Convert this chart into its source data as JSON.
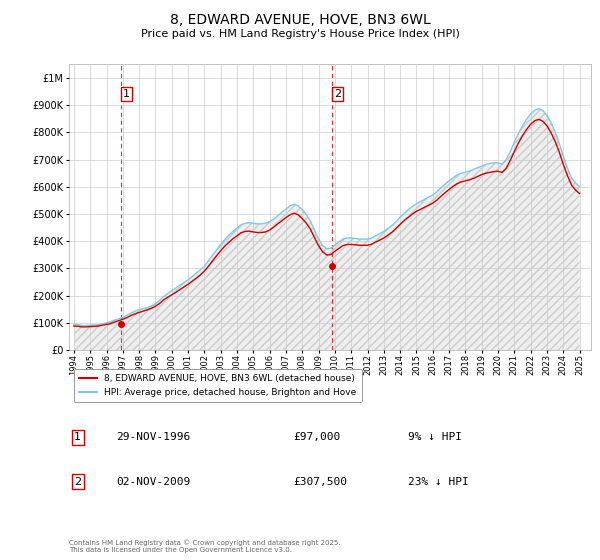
{
  "title": "8, EDWARD AVENUE, HOVE, BN3 6WL",
  "subtitle": "Price paid vs. HM Land Registry's House Price Index (HPI)",
  "ytick_vals": [
    0,
    100000,
    200000,
    300000,
    400000,
    500000,
    600000,
    700000,
    800000,
    900000,
    1000000
  ],
  "ylim": [
    0,
    1050000
  ],
  "xlim_start": 1993.7,
  "xlim_end": 2025.7,
  "hpi_color": "#7ec8e3",
  "price_color": "#cc0000",
  "background_color": "#ffffff",
  "grid_color": "#cccccc",
  "sale1_x": 1996.91,
  "sale1_y": 97000,
  "sale2_x": 2009.84,
  "sale2_y": 307500,
  "legend_label_price": "8, EDWARD AVENUE, HOVE, BN3 6WL (detached house)",
  "legend_label_hpi": "HPI: Average price, detached house, Brighton and Hove",
  "footnote": "Contains HM Land Registry data © Crown copyright and database right 2025.\nThis data is licensed under the Open Government Licence v3.0.",
  "hpi_data_x": [
    1994.0,
    1994.25,
    1994.5,
    1994.75,
    1995.0,
    1995.25,
    1995.5,
    1995.75,
    1996.0,
    1996.25,
    1996.5,
    1996.75,
    1997.0,
    1997.25,
    1997.5,
    1997.75,
    1998.0,
    1998.25,
    1998.5,
    1998.75,
    1999.0,
    1999.25,
    1999.5,
    1999.75,
    2000.0,
    2000.25,
    2000.5,
    2000.75,
    2001.0,
    2001.25,
    2001.5,
    2001.75,
    2002.0,
    2002.25,
    2002.5,
    2002.75,
    2003.0,
    2003.25,
    2003.5,
    2003.75,
    2004.0,
    2004.25,
    2004.5,
    2004.75,
    2005.0,
    2005.25,
    2005.5,
    2005.75,
    2006.0,
    2006.25,
    2006.5,
    2006.75,
    2007.0,
    2007.25,
    2007.5,
    2007.75,
    2008.0,
    2008.25,
    2008.5,
    2008.75,
    2009.0,
    2009.25,
    2009.5,
    2009.75,
    2010.0,
    2010.25,
    2010.5,
    2010.75,
    2011.0,
    2011.25,
    2011.5,
    2011.75,
    2012.0,
    2012.25,
    2012.5,
    2012.75,
    2013.0,
    2013.25,
    2013.5,
    2013.75,
    2014.0,
    2014.25,
    2014.5,
    2014.75,
    2015.0,
    2015.25,
    2015.5,
    2015.75,
    2016.0,
    2016.25,
    2016.5,
    2016.75,
    2017.0,
    2017.25,
    2017.5,
    2017.75,
    2018.0,
    2018.25,
    2018.5,
    2018.75,
    2019.0,
    2019.25,
    2019.5,
    2019.75,
    2020.0,
    2020.25,
    2020.5,
    2020.75,
    2021.0,
    2021.25,
    2021.5,
    2021.75,
    2022.0,
    2022.25,
    2022.5,
    2022.75,
    2023.0,
    2023.25,
    2023.5,
    2023.75,
    2024.0,
    2024.25,
    2024.5,
    2024.75,
    2025.0
  ],
  "hpi_data_y": [
    94000,
    93000,
    90000,
    90000,
    91000,
    92000,
    93000,
    96000,
    100000,
    104000,
    110000,
    115000,
    120000,
    128000,
    136000,
    143000,
    148000,
    152000,
    156000,
    162000,
    170000,
    182000,
    196000,
    208000,
    218000,
    228000,
    238000,
    248000,
    258000,
    270000,
    282000,
    294000,
    308000,
    328000,
    348000,
    368000,
    388000,
    406000,
    422000,
    436000,
    448000,
    460000,
    466000,
    468000,
    466000,
    464000,
    464000,
    466000,
    472000,
    482000,
    494000,
    506000,
    518000,
    530000,
    536000,
    530000,
    516000,
    498000,
    474000,
    440000,
    408000,
    384000,
    372000,
    374000,
    386000,
    398000,
    408000,
    412000,
    412000,
    410000,
    408000,
    408000,
    408000,
    412000,
    420000,
    428000,
    436000,
    446000,
    458000,
    472000,
    488000,
    502000,
    516000,
    528000,
    538000,
    546000,
    554000,
    562000,
    570000,
    582000,
    596000,
    610000,
    622000,
    634000,
    644000,
    650000,
    654000,
    658000,
    664000,
    670000,
    676000,
    682000,
    686000,
    688000,
    688000,
    684000,
    700000,
    730000,
    764000,
    796000,
    824000,
    848000,
    868000,
    882000,
    888000,
    880000,
    862000,
    836000,
    802000,
    760000,
    714000,
    670000,
    634000,
    614000,
    600000
  ],
  "price_data_x": [
    1994.0,
    1994.25,
    1994.5,
    1994.75,
    1995.0,
    1995.25,
    1995.5,
    1995.75,
    1996.0,
    1996.25,
    1996.5,
    1996.75,
    1997.0,
    1997.25,
    1997.5,
    1997.75,
    1998.0,
    1998.25,
    1998.5,
    1998.75,
    1999.0,
    1999.25,
    1999.5,
    1999.75,
    2000.0,
    2000.25,
    2000.5,
    2000.75,
    2001.0,
    2001.25,
    2001.5,
    2001.75,
    2002.0,
    2002.25,
    2002.5,
    2002.75,
    2003.0,
    2003.25,
    2003.5,
    2003.75,
    2004.0,
    2004.25,
    2004.5,
    2004.75,
    2005.0,
    2005.25,
    2005.5,
    2005.75,
    2006.0,
    2006.25,
    2006.5,
    2006.75,
    2007.0,
    2007.25,
    2007.5,
    2007.75,
    2008.0,
    2008.25,
    2008.5,
    2008.75,
    2009.0,
    2009.25,
    2009.5,
    2009.75,
    2010.0,
    2010.25,
    2010.5,
    2010.75,
    2011.0,
    2011.25,
    2011.5,
    2011.75,
    2012.0,
    2012.25,
    2012.5,
    2012.75,
    2013.0,
    2013.25,
    2013.5,
    2013.75,
    2014.0,
    2014.25,
    2014.5,
    2014.75,
    2015.0,
    2015.25,
    2015.5,
    2015.75,
    2016.0,
    2016.25,
    2016.5,
    2016.75,
    2017.0,
    2017.25,
    2017.5,
    2017.75,
    2018.0,
    2018.25,
    2018.5,
    2018.75,
    2019.0,
    2019.25,
    2019.5,
    2019.75,
    2020.0,
    2020.25,
    2020.5,
    2020.75,
    2021.0,
    2021.25,
    2021.5,
    2021.75,
    2022.0,
    2022.25,
    2022.5,
    2022.75,
    2023.0,
    2023.25,
    2023.5,
    2023.75,
    2024.0,
    2024.25,
    2024.5,
    2024.75,
    2025.0
  ],
  "price_data_y": [
    88000,
    87000,
    85000,
    85000,
    86000,
    87000,
    88000,
    91000,
    94000,
    97000,
    103000,
    108000,
    113000,
    119000,
    127000,
    133000,
    138000,
    143000,
    148000,
    153000,
    161000,
    171000,
    184000,
    194000,
    203000,
    212000,
    222000,
    232000,
    242000,
    253000,
    264000,
    276000,
    290000,
    308000,
    328000,
    347000,
    365000,
    382000,
    396000,
    409000,
    420000,
    431000,
    436000,
    437000,
    434000,
    432000,
    432000,
    434000,
    441000,
    452000,
    464000,
    475000,
    487000,
    497000,
    503000,
    497000,
    483000,
    466000,
    444000,
    413000,
    383000,
    361000,
    349000,
    351000,
    363000,
    374000,
    384000,
    388000,
    388000,
    387000,
    385000,
    385000,
    385000,
    389000,
    397000,
    404000,
    412000,
    422000,
    433000,
    447000,
    462000,
    476000,
    488000,
    500000,
    510000,
    517000,
    525000,
    532000,
    540000,
    551000,
    565000,
    578000,
    590000,
    602000,
    612000,
    618000,
    622000,
    626000,
    631000,
    638000,
    645000,
    650000,
    653000,
    656000,
    657000,
    653000,
    668000,
    697000,
    730000,
    761000,
    788000,
    811000,
    830000,
    843000,
    848000,
    841000,
    824000,
    799000,
    767000,
    728000,
    683000,
    642000,
    607000,
    588000,
    575000
  ]
}
